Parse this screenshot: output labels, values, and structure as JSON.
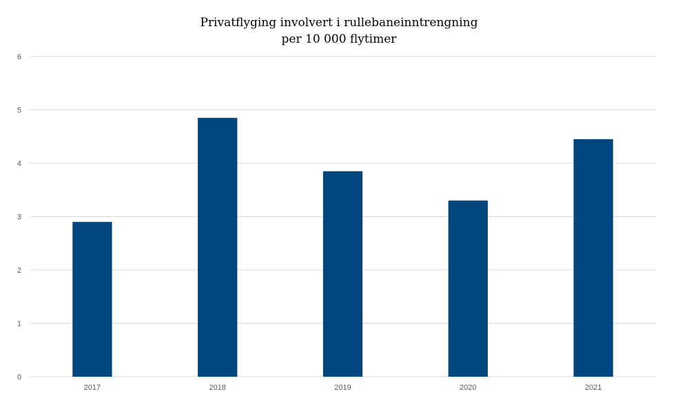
{
  "chart_data": {
    "type": "bar",
    "title": [
      "Privatflyging involvert i rullebaneinntrengning",
      "per 10 000 flytimer"
    ],
    "xlabel": "",
    "ylabel": "",
    "categories": [
      "2017",
      "2018",
      "2019",
      "2020",
      "2021"
    ],
    "values": [
      2.9,
      4.85,
      3.85,
      3.3,
      4.45
    ],
    "ylim": [
      0,
      6
    ],
    "yticks": [
      0,
      1,
      2,
      3,
      4,
      5,
      6
    ],
    "grid": true,
    "legend": "none",
    "bar_color": "#00467F",
    "grid_color": "#D9D9D9"
  }
}
